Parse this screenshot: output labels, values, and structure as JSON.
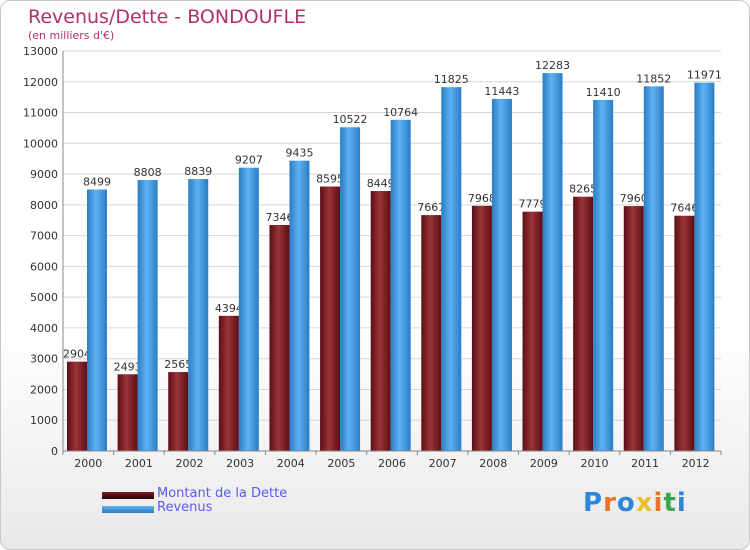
{
  "title": "Revenus/Dette - BONDOUFLE",
  "subtitle": "(en milliers d'€)",
  "logo": "Proxiti",
  "colors": {
    "title": "#b0306a",
    "dette": "#7a1f22",
    "revenus": "#3c97e0",
    "legend_text": "#5a5aee"
  },
  "chart_data": {
    "type": "bar",
    "title": "Revenus/Dette - BONDOUFLE",
    "ylabel": "(en milliers d'€)",
    "xlabel": "",
    "ylim": [
      0,
      13000
    ],
    "ytick_step": 1000,
    "categories": [
      "2000",
      "2001",
      "2002",
      "2003",
      "2004",
      "2005",
      "2006",
      "2007",
      "2008",
      "2009",
      "2010",
      "2011",
      "2012"
    ],
    "series": [
      {
        "name": "Montant de la Dette",
        "values": [
          2904,
          2493,
          2565,
          4394,
          7346,
          8595,
          8449,
          7667,
          7968,
          7779,
          8265,
          7960,
          7646
        ]
      },
      {
        "name": "Revenus",
        "values": [
          8499,
          8808,
          8839,
          9207,
          9435,
          10522,
          10764,
          11825,
          11443,
          12283,
          11410,
          11852,
          11971
        ]
      }
    ],
    "grid": true,
    "legend": "bottom-left"
  }
}
